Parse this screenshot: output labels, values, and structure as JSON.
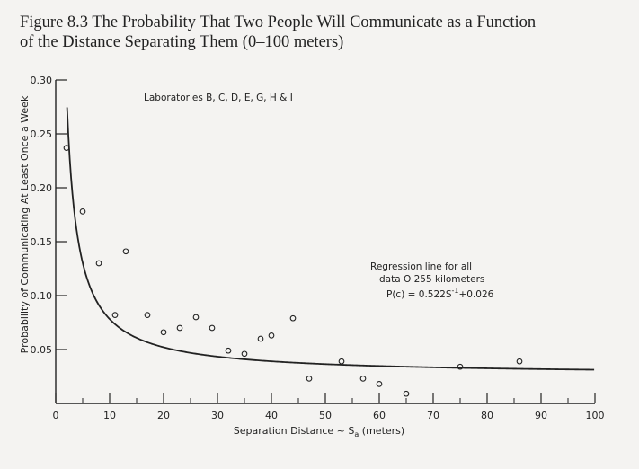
{
  "caption": {
    "line1": "Figure 8.3 The Probability That Two People Will Communicate as a Function",
    "line2": "of the Distance Separating Them (0–100 meters)"
  },
  "chart_data": {
    "type": "scatter",
    "xlabel": "Separation Distance ~ S",
    "xlabel_sub": "a",
    "xlabel_suffix": " (meters)",
    "ylabel": "Probability of Communicating At Least Once a Week",
    "xlim": [
      0,
      100
    ],
    "ylim": [
      0,
      0.3
    ],
    "x_ticks": [
      0,
      10,
      20,
      30,
      40,
      50,
      60,
      70,
      80,
      90,
      100
    ],
    "x_tick_labels": [
      "0",
      "10",
      "20",
      "30",
      "40",
      "50",
      "60",
      "70",
      "80",
      "90",
      "100"
    ],
    "y_ticks": [
      0.05,
      0.1,
      0.15,
      0.2,
      0.25,
      0.3
    ],
    "y_tick_labels": [
      "0.05",
      "0.10",
      "0.15",
      "0.20",
      "0.25",
      "0.30"
    ],
    "grid": false,
    "annotation_top": "Laboratories B, C, D, E, G, H & I",
    "regression_label": {
      "line1": "Regression line for all",
      "line2": "data O 255 kilometers",
      "line3": "P(c) = 0.522S",
      "line3_sup": "-1",
      "line3_end": "+0.026"
    },
    "series": [
      {
        "kind": "points",
        "x": [
          2,
          5,
          8,
          11,
          13,
          17,
          20,
          23,
          26,
          29,
          32,
          35,
          38,
          40,
          44,
          47,
          53,
          57,
          60,
          65,
          75,
          86
        ],
        "y": [
          0.237,
          0.178,
          0.13,
          0.082,
          0.141,
          0.082,
          0.066,
          0.07,
          0.08,
          0.07,
          0.049,
          0.046,
          0.06,
          0.063,
          0.079,
          0.023,
          0.039,
          0.023,
          0.018,
          0.009,
          0.034,
          0.039
        ]
      },
      {
        "kind": "curve",
        "formula": "P(c) = 0.522/S + 0.026",
        "x_start": 2.1
      }
    ]
  }
}
